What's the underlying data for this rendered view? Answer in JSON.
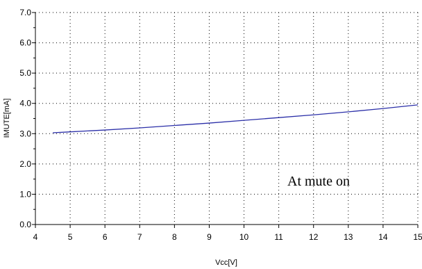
{
  "chart_data": {
    "type": "line",
    "xlabel": "Vcc[V]",
    "ylabel": "IMUTE[mA]",
    "xlim": [
      4,
      15
    ],
    "ylim": [
      0.0,
      7.0
    ],
    "x_ticks": [
      "4",
      "5",
      "6",
      "7",
      "8",
      "9",
      "10",
      "11",
      "12",
      "13",
      "14",
      "15"
    ],
    "y_ticks": [
      "0.0",
      "1.0",
      "2.0",
      "3.0",
      "4.0",
      "5.0",
      "6.0",
      "7.0"
    ],
    "grid": true,
    "series": [
      {
        "color": "#2b2fa8",
        "x": [
          4.5,
          5,
          6,
          7,
          8,
          9,
          10,
          11,
          12,
          13,
          14,
          15
        ],
        "y": [
          3.03,
          3.06,
          3.12,
          3.19,
          3.27,
          3.35,
          3.44,
          3.53,
          3.62,
          3.72,
          3.83,
          3.95
        ]
      }
    ],
    "annotation": "At mute on"
  }
}
